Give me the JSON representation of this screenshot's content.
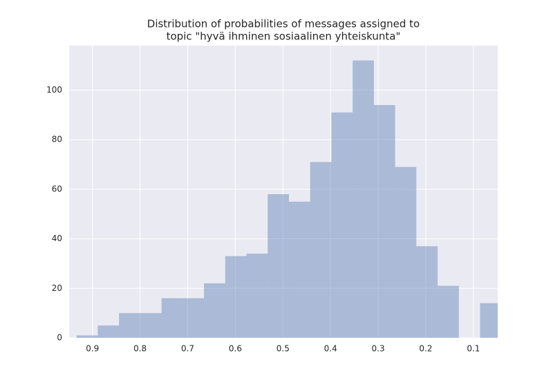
{
  "chart_data": {
    "type": "histogram",
    "title": [
      "Distribution of probabilities of messages assigned to",
      "topic \"hyvä ihminen sosiaalinen yhteiskunta\""
    ],
    "bins": [
      0.0414,
      0.086,
      0.1306,
      0.1752,
      0.2198,
      0.2644,
      0.309,
      0.3536,
      0.3982,
      0.4428,
      0.4874,
      0.532,
      0.5766,
      0.6212,
      0.6658,
      0.7104,
      0.755,
      0.7996,
      0.8442,
      0.8888,
      0.9334
    ],
    "values": [
      14,
      0,
      21,
      37,
      69,
      94,
      112,
      91,
      71,
      55,
      58,
      34,
      33,
      22,
      16,
      16,
      10,
      10,
      5,
      1
    ],
    "color": "#4c72b0",
    "xlim": [
      0.949,
      0.049
    ],
    "xticks": [
      0.9,
      0.8,
      0.7,
      0.6,
      0.5,
      0.4,
      0.3,
      0.2,
      0.1
    ],
    "ylim": [
      0,
      118
    ],
    "yticks": [
      0,
      20,
      40,
      60,
      80,
      100
    ],
    "grid": true
  }
}
